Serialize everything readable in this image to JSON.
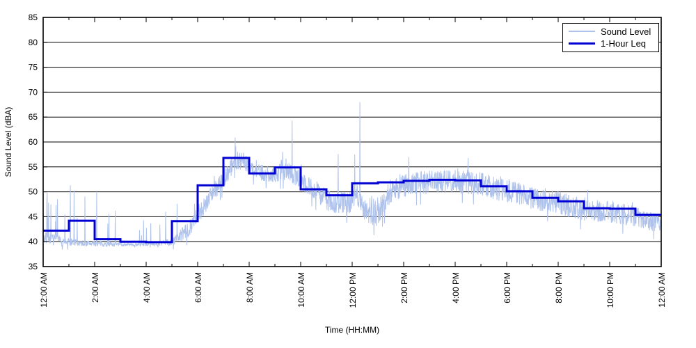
{
  "chart_data": {
    "type": "line",
    "title": "",
    "xlabel": "Time (HH:MM)",
    "ylabel": "Sound Level (dBA)",
    "xlim": [
      0,
      24
    ],
    "ylim": [
      35,
      85
    ],
    "grid": "horizontal-solid-black",
    "legend_position": "top-right-inside",
    "y_ticks": [
      35,
      40,
      45,
      50,
      55,
      60,
      65,
      70,
      75,
      80,
      85
    ],
    "x_tick_hours": [
      0,
      2,
      4,
      6,
      8,
      10,
      12,
      14,
      16,
      18,
      20,
      22,
      24
    ],
    "x_minor_tick_every_hours": 1,
    "x_tick_labels": [
      "12:00 AM",
      "2:00 AM",
      "4:00 AM",
      "6:00 AM",
      "8:00 AM",
      "10:00 AM",
      "12:00 PM",
      "2:00 PM",
      "4:00 PM",
      "6:00 PM",
      "8:00 PM",
      "10:00 PM",
      "12:00 AM"
    ],
    "colors": {
      "sound_level": "#AEC2EC",
      "leq": "#0000D2",
      "grid": "#000000",
      "axis": "#000000"
    },
    "series": [
      {
        "name": "Sound Level",
        "style": "noisy-minute-trace",
        "color": "#AEC2EC",
        "samples_per_hour": 90,
        "seed": 7,
        "control_point_format": [
          "hour",
          "base_dBA",
          "noise_amp_dBA",
          "spike_prob",
          "spike_max_above_base_dBA"
        ],
        "control_points": [
          [
            0.0,
            40.7,
            1.3,
            0.2,
            8
          ],
          [
            0.9,
            40.0,
            0.9,
            0.14,
            10
          ],
          [
            1.5,
            39.7,
            0.6,
            0.08,
            10
          ],
          [
            2.5,
            39.5,
            0.45,
            0.05,
            8
          ],
          [
            3.5,
            39.4,
            0.3,
            0.03,
            4
          ],
          [
            4.5,
            39.6,
            0.4,
            0.05,
            5
          ],
          [
            5.0,
            40.0,
            0.9,
            0.12,
            6
          ],
          [
            5.6,
            42.2,
            1.6,
            0.1,
            4
          ],
          [
            6.0,
            45.3,
            1.9,
            0.08,
            3
          ],
          [
            6.6,
            50.0,
            1.9,
            0.06,
            3
          ],
          [
            7.0,
            52.6,
            1.9,
            0.05,
            3
          ],
          [
            7.45,
            56.3,
            1.9,
            0.05,
            3
          ],
          [
            7.8,
            56.0,
            1.7,
            0.04,
            2.5
          ],
          [
            8.2,
            54.2,
            1.6,
            0.04,
            2.5
          ],
          [
            8.8,
            53.4,
            1.6,
            0.05,
            2.5
          ],
          [
            9.5,
            54.1,
            1.9,
            0.05,
            3
          ],
          [
            10.0,
            52.6,
            2.0,
            0.05,
            3
          ],
          [
            10.8,
            49.2,
            2.1,
            0.06,
            3.5
          ],
          [
            11.3,
            47.6,
            2.2,
            0.07,
            4
          ],
          [
            11.9,
            47.8,
            2.2,
            0.07,
            5
          ],
          [
            12.15,
            49.8,
            2.1,
            0.05,
            4
          ],
          [
            12.55,
            45.9,
            2.2,
            0.07,
            4
          ],
          [
            12.95,
            45.2,
            2.3,
            0.07,
            4
          ],
          [
            13.5,
            50.3,
            2.5,
            0.05,
            3
          ],
          [
            14.0,
            51.4,
            2.5,
            0.05,
            3
          ],
          [
            15.0,
            52.0,
            2.4,
            0.05,
            3
          ],
          [
            16.0,
            52.1,
            2.3,
            0.05,
            3
          ],
          [
            17.0,
            51.6,
            2.4,
            0.05,
            3
          ],
          [
            18.0,
            50.1,
            2.3,
            0.05,
            3
          ],
          [
            19.0,
            48.6,
            2.2,
            0.05,
            3
          ],
          [
            20.0,
            47.9,
            2.3,
            0.05,
            3
          ],
          [
            21.0,
            46.4,
            2.3,
            0.06,
            3.5
          ],
          [
            22.0,
            45.9,
            2.2,
            0.05,
            3
          ],
          [
            23.0,
            45.1,
            2.1,
            0.05,
            3
          ],
          [
            23.7,
            43.9,
            1.9,
            0.04,
            3
          ],
          [
            24.0,
            43.6,
            1.8,
            0.04,
            3
          ]
        ],
        "notable_spikes": [
          {
            "t": 0.15,
            "v": 49.8
          },
          {
            "t": 0.55,
            "v": 48.5
          },
          {
            "t": 1.05,
            "v": 51.3
          },
          {
            "t": 1.2,
            "v": 50.2
          },
          {
            "t": 2.08,
            "v": 50.0
          },
          {
            "t": 2.8,
            "v": 46.2
          },
          {
            "t": 3.9,
            "v": 44.3
          },
          {
            "t": 4.75,
            "v": 46.0
          },
          {
            "t": 5.2,
            "v": 47.6
          },
          {
            "t": 7.45,
            "v": 60.9
          },
          {
            "t": 9.3,
            "v": 58.0
          },
          {
            "t": 9.67,
            "v": 64.3
          },
          {
            "t": 11.45,
            "v": 57.6
          },
          {
            "t": 12.1,
            "v": 57.5
          },
          {
            "t": 12.3,
            "v": 68.0
          },
          {
            "t": 14.2,
            "v": 57.0
          },
          {
            "t": 16.5,
            "v": 56.8
          },
          {
            "t": 21.15,
            "v": 50.4
          }
        ]
      },
      {
        "name": "1-Hour Leq",
        "style": "hourly-step",
        "color": "#0000D2",
        "hourly_values": [
          42.2,
          44.2,
          40.5,
          40.0,
          39.9,
          44.1,
          51.3,
          56.8,
          53.7,
          54.9,
          50.5,
          49.3,
          51.7,
          51.9,
          52.2,
          52.4,
          52.3,
          51.1,
          50.1,
          48.8,
          48.1,
          46.7,
          46.6,
          45.4
        ]
      }
    ]
  },
  "legend": {
    "entries": [
      {
        "label": "Sound Level"
      },
      {
        "label": "1-Hour Leq"
      }
    ]
  }
}
